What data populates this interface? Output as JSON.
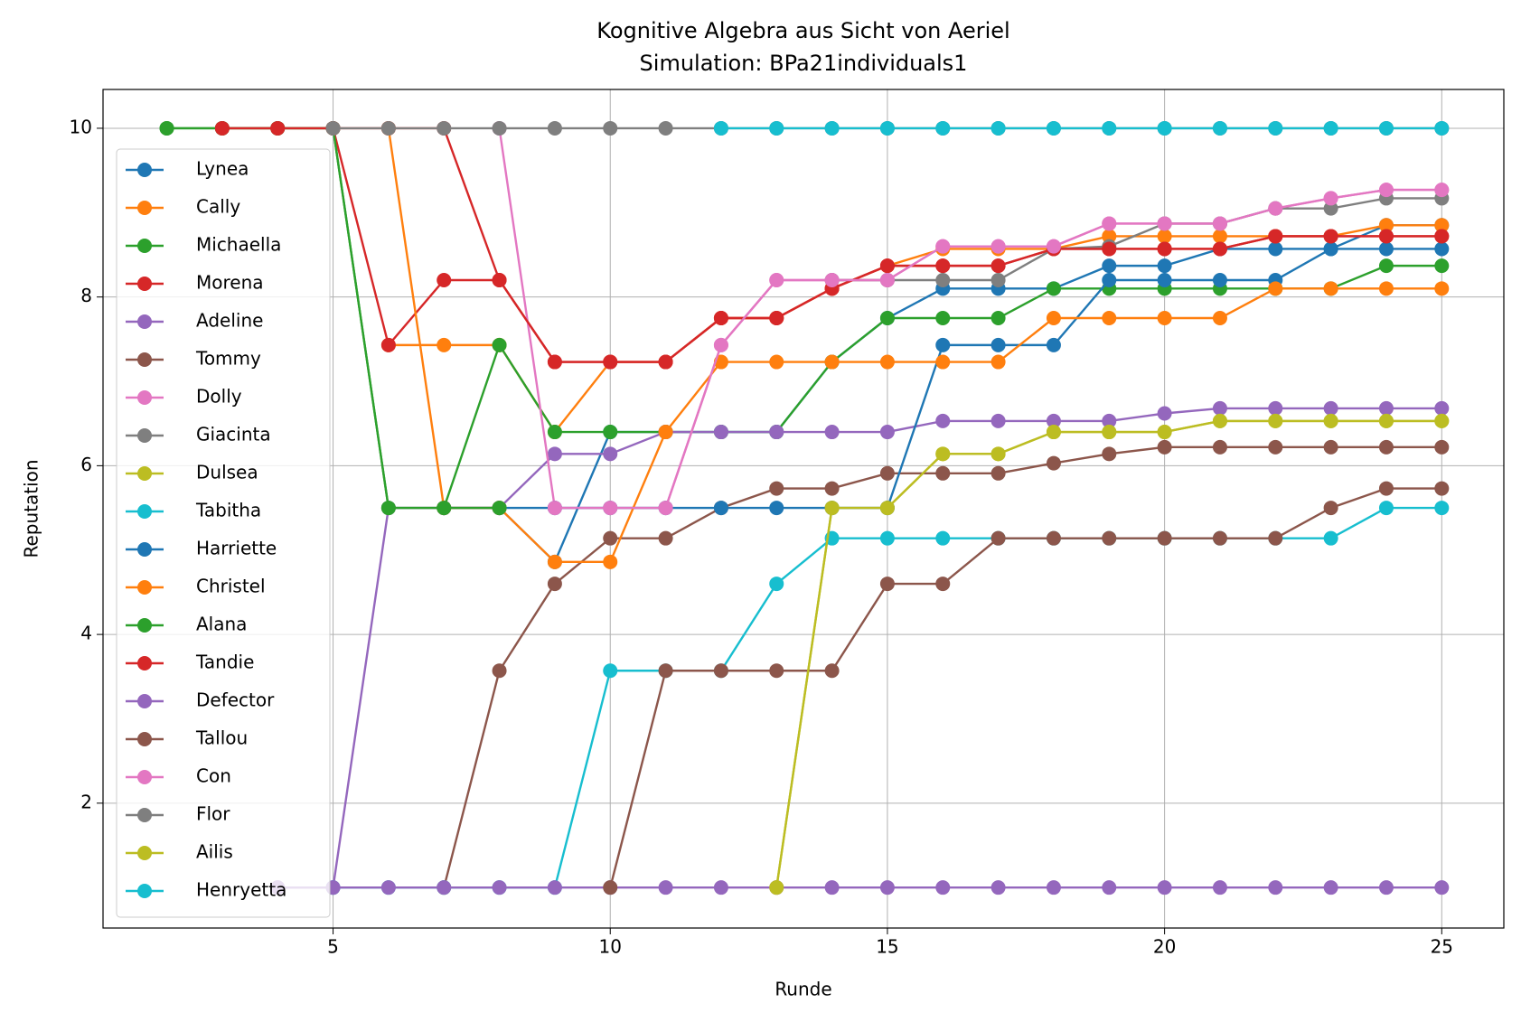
{
  "chart_data": {
    "type": "line",
    "title": "Kognitive Algebra aus Sicht von Aeriel",
    "subtitle": "Simulation: BPa21individuals1",
    "x_label": "Runde",
    "y_label": "Reputation",
    "x": [
      2,
      3,
      4,
      5,
      6,
      7,
      8,
      9,
      10,
      11,
      12,
      13,
      14,
      15,
      16,
      17,
      18,
      19,
      20,
      21,
      22,
      23,
      24,
      25
    ],
    "xlim": [
      0.85,
      26.12
    ],
    "ylim": [
      0.52,
      10.46
    ],
    "xticks": [
      5,
      10,
      15,
      20,
      25
    ],
    "yticks": [
      2,
      4,
      6,
      8,
      10
    ],
    "grid": true,
    "legend": "upper left",
    "series": [
      {
        "name": "Lynea",
        "color": "#1f77b4",
        "values": [
          null,
          null,
          null,
          null,
          null,
          5.5,
          5.5,
          4.86,
          6.4,
          6.4,
          6.4,
          6.4,
          7.23,
          7.75,
          8.1,
          8.1,
          8.1,
          8.37,
          8.37,
          8.57,
          8.57,
          8.57,
          8.85,
          8.85
        ]
      },
      {
        "name": "Cally",
        "color": "#ff7f0e",
        "values": [
          null,
          null,
          null,
          null,
          7.43,
          7.43,
          7.43,
          6.4,
          7.23,
          7.23,
          7.75,
          7.75,
          8.1,
          8.37,
          8.57,
          8.57,
          8.57,
          8.72,
          8.72,
          8.72,
          8.72,
          8.72,
          8.85,
          8.85
        ]
      },
      {
        "name": "Michaella",
        "color": "#2ca02c",
        "values": [
          10,
          10,
          10,
          10,
          5.5,
          5.5,
          7.43,
          6.4,
          6.4,
          6.4,
          6.4,
          6.4,
          7.23,
          7.75,
          7.75,
          7.75,
          8.1,
          8.1,
          8.1,
          8.1,
          8.1,
          8.1,
          8.37,
          8.37
        ]
      },
      {
        "name": "Morena",
        "color": "#d62728",
        "values": [
          null,
          10,
          10,
          10,
          7.43,
          8.2,
          8.2,
          7.23,
          7.23,
          7.23,
          7.75,
          7.75,
          8.1,
          8.37,
          8.37,
          8.37,
          8.57,
          8.57,
          8.57,
          8.57,
          8.72,
          8.72,
          8.72,
          8.72
        ]
      },
      {
        "name": "Adeline",
        "color": "#9467bd",
        "values": [
          null,
          null,
          1,
          1,
          5.5,
          5.5,
          5.5,
          6.14,
          6.14,
          6.4,
          6.4,
          6.4,
          6.4,
          6.4,
          6.53,
          6.53,
          6.53,
          6.53,
          6.62,
          6.68,
          6.68,
          6.68,
          6.68,
          6.68
        ]
      },
      {
        "name": "Tommy",
        "color": "#8c564b",
        "values": [
          null,
          null,
          null,
          null,
          null,
          1,
          3.57,
          4.6,
          5.14,
          5.14,
          5.5,
          5.73,
          5.73,
          5.91,
          5.91,
          5.91,
          6.03,
          6.14,
          6.22,
          6.22,
          6.22,
          6.22,
          6.22,
          6.22
        ]
      },
      {
        "name": "Dolly",
        "color": "#e377c2",
        "values": [
          null,
          null,
          null,
          null,
          null,
          null,
          10,
          5.5,
          5.5,
          5.5,
          7.43,
          8.2,
          8.2,
          8.2,
          8.6,
          8.6,
          8.6,
          8.87,
          8.87,
          8.87,
          9.05,
          9.17,
          9.27,
          9.27
        ]
      },
      {
        "name": "Giacinta",
        "color": "#7f7f7f",
        "values": [
          null,
          null,
          null,
          null,
          null,
          null,
          null,
          null,
          null,
          null,
          null,
          null,
          8.2,
          8.2,
          8.2,
          8.2,
          8.57,
          8.6,
          8.87,
          8.87,
          9.05,
          9.05,
          9.17,
          9.17
        ]
      },
      {
        "name": "Dulsea",
        "color": "#bcbd22",
        "values": [
          null,
          null,
          null,
          null,
          null,
          null,
          null,
          null,
          null,
          null,
          null,
          1,
          5.5,
          5.5,
          6.14,
          6.14,
          6.4,
          6.4,
          6.4,
          6.53,
          6.53,
          6.53,
          6.53,
          6.53
        ]
      },
      {
        "name": "Tabitha",
        "color": "#17becf",
        "values": [
          null,
          null,
          null,
          1,
          1,
          1,
          1,
          1,
          3.57,
          3.57,
          3.57,
          4.6,
          5.14,
          5.14,
          5.14,
          5.14,
          5.14,
          5.14,
          5.14,
          5.14,
          5.14,
          5.14,
          5.5,
          5.5
        ]
      },
      {
        "name": "Harriette",
        "color": "#1f77b4",
        "values": [
          null,
          null,
          null,
          null,
          null,
          5.5,
          5.5,
          5.5,
          5.5,
          5.5,
          5.5,
          5.5,
          5.5,
          5.5,
          7.43,
          7.43,
          7.43,
          8.2,
          8.2,
          8.2,
          8.2,
          8.57,
          8.57,
          8.57
        ]
      },
      {
        "name": "Christel",
        "color": "#ff7f0e",
        "values": [
          null,
          null,
          null,
          null,
          10,
          5.5,
          5.5,
          4.86,
          4.86,
          6.4,
          7.23,
          7.23,
          7.23,
          7.23,
          7.23,
          7.23,
          7.75,
          7.75,
          7.75,
          7.75,
          8.1,
          8.1,
          8.1,
          8.1
        ]
      },
      {
        "name": "Alana",
        "color": "#2ca02c",
        "values": [
          10,
          10,
          10,
          10,
          5.5,
          5.5,
          5.5,
          null,
          null,
          null,
          null,
          null,
          null,
          null,
          null,
          null,
          null,
          null,
          null,
          null,
          null,
          null,
          null,
          null
        ]
      },
      {
        "name": "Tandie",
        "color": "#d62728",
        "values": [
          null,
          10,
          10,
          10,
          10,
          10,
          8.2,
          7.23,
          7.23,
          7.23,
          7.75,
          7.75,
          8.1,
          8.37,
          8.37,
          8.37,
          8.57,
          8.57,
          8.57,
          8.57,
          8.72,
          8.72,
          8.72,
          8.72
        ]
      },
      {
        "name": "Defector",
        "color": "#9467bd",
        "values": [
          null,
          null,
          1,
          1,
          1,
          1,
          1,
          1,
          1,
          1,
          1,
          1,
          1,
          1,
          1,
          1,
          1,
          1,
          1,
          1,
          1,
          1,
          1,
          1
        ]
      },
      {
        "name": "Tallou",
        "color": "#8c564b",
        "values": [
          null,
          null,
          null,
          null,
          null,
          null,
          null,
          null,
          1,
          3.57,
          3.57,
          3.57,
          3.57,
          4.6,
          4.6,
          5.14,
          5.14,
          5.14,
          5.14,
          5.14,
          5.14,
          5.5,
          5.73,
          5.73
        ]
      },
      {
        "name": "Con",
        "color": "#e377c2",
        "values": [
          null,
          null,
          null,
          null,
          null,
          null,
          null,
          5.5,
          5.5,
          5.5,
          7.43,
          8.2,
          8.2,
          8.2,
          8.6,
          8.6,
          8.6,
          8.87,
          8.87,
          8.87,
          9.05,
          9.17,
          9.27,
          9.27
        ]
      },
      {
        "name": "Flor",
        "color": "#7f7f7f",
        "values": [
          null,
          null,
          null,
          10,
          10,
          10,
          10,
          10,
          10,
          10,
          10,
          10,
          10,
          10,
          10,
          10,
          10,
          10,
          10,
          10,
          10,
          10,
          10,
          10
        ]
      },
      {
        "name": "Ailis",
        "color": "#bcbd22",
        "values": [
          null,
          null,
          null,
          null,
          null,
          null,
          null,
          null,
          null,
          null,
          null,
          1,
          5.5,
          5.5,
          6.14,
          6.14,
          6.4,
          6.4,
          6.4,
          6.53,
          6.53,
          6.53,
          6.53,
          6.53
        ]
      },
      {
        "name": "Henryetta",
        "color": "#17becf",
        "values": [
          null,
          null,
          null,
          null,
          null,
          null,
          null,
          null,
          null,
          null,
          10,
          10,
          10,
          10,
          10,
          10,
          10,
          10,
          10,
          10,
          10,
          10,
          10,
          10
        ]
      }
    ]
  }
}
